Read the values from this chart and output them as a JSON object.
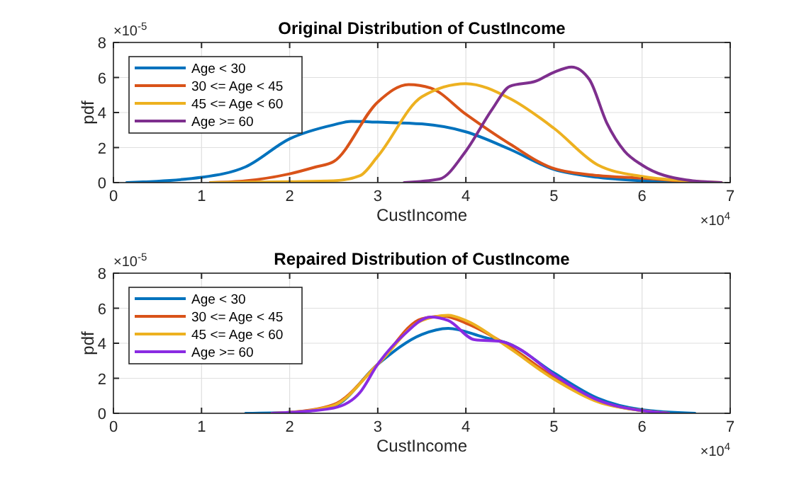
{
  "chart_data": [
    {
      "type": "line",
      "title": "Original Distribution of CustIncome",
      "xlabel": "CustIncome",
      "ylabel": "pdf",
      "annotations": [
        "×10$^{-5}$",
        "×10$^{4}$"
      ],
      "xlim": [
        0,
        7
      ],
      "xticks": [
        0,
        1,
        2,
        3,
        4,
        5,
        6,
        7
      ],
      "ylim": [
        0,
        8
      ],
      "yticks": [
        0,
        2,
        4,
        6,
        8
      ],
      "grid": true,
      "legend": "top left",
      "line_style": "solid",
      "marker": "none",
      "series": [
        {
          "name": "Age < 30",
          "color": "#0072bd",
          "x": [
            0.15,
            1,
            1.5,
            2,
            2.5,
            2.7,
            3,
            3.5,
            4,
            4.5,
            5,
            5.5,
            6,
            6.5,
            6.6
          ],
          "values": [
            0,
            0.3,
            0.9,
            2.5,
            3.3,
            3.5,
            3.45,
            3.35,
            2.9,
            1.9,
            0.75,
            0.3,
            0.1,
            0,
            0
          ]
        },
        {
          "name": "30 <= Age < 45",
          "color": "#d95319",
          "x": [
            1.1,
            1.5,
            2,
            2.3,
            2.5,
            3,
            3.35,
            3.6,
            4,
            4.5,
            5,
            5.5,
            6,
            6.5,
            6.6
          ],
          "values": [
            0,
            0.1,
            0.5,
            0.9,
            1.2,
            4.6,
            5.6,
            5.4,
            3.9,
            2.2,
            0.8,
            0.4,
            0.25,
            0.05,
            0
          ]
        },
        {
          "name": "45 <= Age < 60",
          "color": "#edb120",
          "x": [
            1.1,
            2,
            2.5,
            2.8,
            3,
            3.5,
            4,
            4.5,
            5,
            5.5,
            6,
            6.5,
            6.9
          ],
          "values": [
            0,
            0.05,
            0.1,
            0.4,
            1.5,
            4.9,
            5.65,
            4.8,
            3.1,
            1,
            0.35,
            0.1,
            0
          ]
        },
        {
          "name": "Age >= 60",
          "color": "#7e2f8e",
          "x": [
            3.3,
            3.7,
            4,
            4.3,
            4.5,
            4.8,
            5,
            5.2,
            5.4,
            5.6,
            5.8,
            6,
            6.5,
            6.9
          ],
          "values": [
            0,
            0.2,
            1.8,
            4.2,
            5.5,
            5.8,
            6.3,
            6.6,
            5.9,
            3.4,
            1.8,
            1,
            0.15,
            0
          ]
        }
      ]
    },
    {
      "type": "line",
      "title": "Repaired Distribution of CustIncome",
      "xlabel": "CustIncome",
      "ylabel": "pdf",
      "annotations": [
        "×10$^{-5}$",
        "×10$^{4}$"
      ],
      "xlim": [
        0,
        7
      ],
      "xticks": [
        0,
        1,
        2,
        3,
        4,
        5,
        6,
        7
      ],
      "ylim": [
        0,
        8
      ],
      "yticks": [
        0,
        2,
        4,
        6,
        8
      ],
      "grid": true,
      "legend": "top left",
      "line_style": "solid",
      "marker": "none",
      "series": [
        {
          "name": "Age < 30",
          "color": "#0072bd",
          "x": [
            1.5,
            2,
            2.5,
            3,
            3.5,
            3.8,
            4.2,
            4.5,
            5,
            5.5,
            6,
            6.6
          ],
          "values": [
            0,
            0.05,
            0.4,
            2.8,
            4.5,
            4.85,
            4.35,
            3.95,
            2.3,
            0.85,
            0.2,
            0
          ]
        },
        {
          "name": "30 <= Age < 45",
          "color": "#d95319",
          "x": [
            1.8,
            2,
            2.5,
            3,
            3.5,
            3.75,
            4,
            4.5,
            5,
            5.5,
            6,
            6.3
          ],
          "values": [
            0,
            0.05,
            0.5,
            2.8,
            5.4,
            5.55,
            5.15,
            3.8,
            2.05,
            0.7,
            0.15,
            0
          ]
        },
        {
          "name": "45 <= Age < 60",
          "color": "#edb120",
          "x": [
            1.8,
            2,
            2.5,
            3,
            3.5,
            3.8,
            4,
            4.5,
            5,
            5.5,
            6,
            6.3
          ],
          "values": [
            0,
            0.05,
            0.45,
            2.8,
            5.3,
            5.6,
            5.3,
            3.7,
            1.95,
            0.65,
            0.15,
            0
          ]
        },
        {
          "name": "Age >= 60",
          "color": "#8a2be2",
          "x": [
            1.8,
            2,
            2.5,
            2.8,
            3,
            3.3,
            3.6,
            3.8,
            4.1,
            4.4,
            4.6,
            5,
            5.5,
            6,
            6.3
          ],
          "values": [
            0,
            0.05,
            0.3,
            1.2,
            2.8,
            4.5,
            5.5,
            5.3,
            4.2,
            4.1,
            3.7,
            2.2,
            0.75,
            0.15,
            0
          ]
        }
      ]
    }
  ]
}
